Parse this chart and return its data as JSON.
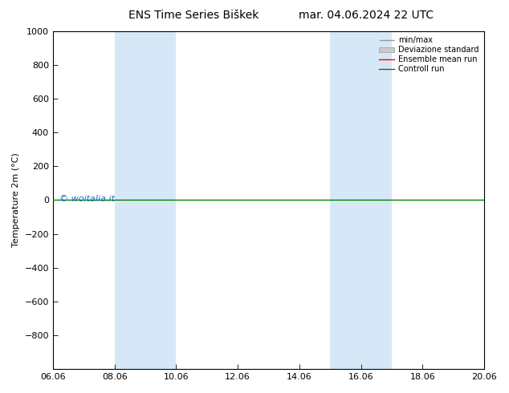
{
  "title_left": "ENS Time Series Biškek",
  "title_right": "mar. 04.06.2024 22 UTC",
  "ylabel": "Temperature 2m (°C)",
  "watermark": "© woitalia.it",
  "background_color": "#ffffff",
  "plot_bg_color": "#ffffff",
  "ylim_top": -1000,
  "ylim_bottom": 1000,
  "yticks": [
    -800,
    -600,
    -400,
    -200,
    0,
    200,
    400,
    600,
    800,
    1000
  ],
  "xtick_labels": [
    "06.06",
    "08.06",
    "10.06",
    "12.06",
    "14.06",
    "16.06",
    "18.06",
    "20.06"
  ],
  "xtick_positions": [
    0,
    2,
    4,
    6,
    8,
    10,
    12,
    14
  ],
  "xlim": [
    0,
    14
  ],
  "shaded_bands": [
    {
      "x_start": 2,
      "x_end": 4,
      "color": "#d6e8f7"
    },
    {
      "x_start": 9,
      "x_end": 11,
      "color": "#d6e8f7"
    }
  ],
  "green_line_color": "#008000",
  "red_line_color": "#ff0000",
  "minmax_line_color": "#999999",
  "std_fill_color": "#cccccc",
  "legend_items": [
    {
      "label": "min/max"
    },
    {
      "label": "Deviazione standard"
    },
    {
      "label": "Ensemble mean run"
    },
    {
      "label": "Controll run"
    }
  ],
  "title_fontsize": 10,
  "axis_label_fontsize": 8,
  "tick_fontsize": 8,
  "legend_fontsize": 7,
  "watermark_color": "#1a6fbb",
  "watermark_fontsize": 8
}
